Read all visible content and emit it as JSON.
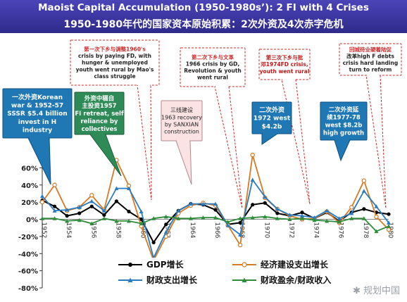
{
  "title_en": "Maoist Capital Accumulation (1950-1980s’): 2 FI with 4 Crises",
  "title_cn": "1950-1980年代的国家资本原始积累：2次外资及4次赤字危机",
  "watermark": "规划中国",
  "callouts": [
    {
      "lines": [
        "一次外资Korean",
        "war & 1952-57",
        "SSSR $5.4 billion",
        "invest in H",
        "industry"
      ],
      "fill": "#1f78b4",
      "stroke": "#0d4f80",
      "text_color": "#ffffff",
      "border": "solid"
    },
    {
      "lines": [
        "外资中辍自",
        "主投资1957",
        "FI retreat, self",
        "reliance by",
        "collectives"
      ],
      "fill": "#2e8b57",
      "stroke": "#1b5e3a",
      "text_color": "#ffffff",
      "border": "solid"
    },
    {
      "lines": [
        "第一次下乡与调整1960's",
        "crisis by paying FD, with",
        "hunger & unemployed",
        "youth went rural by Mao's",
        "class struggle"
      ],
      "fill": "#ffffff",
      "stroke": "#d22a2a",
      "text_color": "#222222",
      "highlight": "#d22a2a",
      "border": "dashed"
    },
    {
      "lines": [
        "三线建设",
        "1963 recovery",
        "by SANXIAN",
        "construction"
      ],
      "fill": "#fbe3e3",
      "stroke": "#b0898e",
      "text_color": "#222222",
      "border": "solid"
    },
    {
      "lines": [
        "第二次下乡与文革",
        "1966 crisis by GD,",
        "Revolution & youth",
        "went rural"
      ],
      "fill": "#ffffff",
      "stroke": "#d22a2a",
      "text_color": "#222222",
      "highlight": "#d22a2a",
      "border": "dashed"
    },
    {
      "lines": [
        "第三次下乡与批",
        "邓1974FD crisis,",
        "youth went rural"
      ],
      "fill": "#ffffff",
      "stroke": "#d22a2a",
      "text_color": "#c01818",
      "border": "dashed"
    },
    {
      "lines": [
        "二次外资",
        "1972 west",
        "$4.2b"
      ],
      "fill": "#1f78b4",
      "stroke": "#0d4f80",
      "text_color": "#ffffff",
      "border": "solid"
    },
    {
      "lines": [
        "二次外资延",
        "续1977-78",
        "west $8.2b",
        "high growth"
      ],
      "fill": "#1f78b4",
      "stroke": "#0d4f80",
      "text_color": "#ffffff",
      "border": "solid"
    },
    {
      "lines": [
        "回城待业硬着陆促",
        "改革high F debts",
        "crisis hard landing",
        "turn to reform"
      ],
      "fill": "#ffffff",
      "stroke": "#d22a2a",
      "text_color": "#222222",
      "highlight": "#d22a2a",
      "border": "dashed"
    }
  ],
  "chart_data": {
    "type": "line",
    "title": "",
    "xlabel": "",
    "ylabel": "",
    "x": [
      1952,
      1953,
      1954,
      1955,
      1956,
      1957,
      1958,
      1959,
      1960,
      1961,
      1962,
      1963,
      1964,
      1965,
      1966,
      1967,
      1968,
      1969,
      1970,
      1971,
      1972,
      1973,
      1974,
      1975,
      1976,
      1977,
      1978,
      1979,
      1980
    ],
    "xtick_labels": [
      "1952",
      "1954",
      "1956",
      "1958",
      "1960",
      "1962",
      "1964",
      "1966",
      "1968",
      "1970",
      "1972",
      "1974",
      "1976",
      "1978",
      "1980"
    ],
    "ylim": [
      -80,
      80
    ],
    "yticks": [
      -80,
      -60,
      -40,
      -20,
      0,
      20,
      40,
      60
    ],
    "ytick_labels": [
      "-80%",
      "-60%",
      "-40%",
      "-20%",
      "0%",
      "20%",
      "40%",
      "60%"
    ],
    "grid": "horizontal",
    "legend_position": "bottom",
    "series": [
      {
        "name": "GDP增长",
        "color": "#000000",
        "marker": "circle-filled",
        "values": [
          22,
          15,
          4,
          7,
          15,
          5,
          21,
          9,
          0,
          -27,
          -6,
          10,
          18,
          17,
          11,
          -6,
          -4,
          17,
          19,
          7,
          4,
          8,
          1,
          8,
          -2,
          8,
          12,
          8,
          6
        ]
      },
      {
        "name": "经济建设支出增长",
        "color": "#d67a24",
        "marker": "circle-open",
        "values": [
          20,
          40,
          10,
          14,
          28,
          11,
          69,
          39,
          -8,
          -48,
          -20,
          7,
          16,
          19,
          16,
          -7,
          -30,
          75,
          25,
          12,
          4,
          0,
          1,
          9,
          -4,
          14,
          45,
          3,
          -12
        ]
      },
      {
        "name": "财政支出增长",
        "color": "#2b7bbf",
        "marker": "triangle",
        "values": [
          27,
          10,
          11,
          14,
          21,
          10,
          36,
          36,
          9,
          -45,
          -15,
          10,
          18,
          18,
          18,
          -7,
          -18,
          46,
          26,
          12,
          5,
          4,
          2,
          10,
          1,
          7,
          33,
          15,
          -4
        ]
      },
      {
        "name": "财政盈余/财政收入",
        "color": "#2e8b3a",
        "marker": "triangle",
        "values": [
          1,
          1,
          -2,
          -1,
          -5,
          1,
          -2,
          -2,
          -5,
          1,
          3,
          1,
          1,
          2,
          2,
          -3,
          1,
          2,
          3,
          1,
          0,
          1,
          -1,
          -2,
          -3,
          1,
          1,
          -14,
          -8
        ]
      }
    ]
  }
}
